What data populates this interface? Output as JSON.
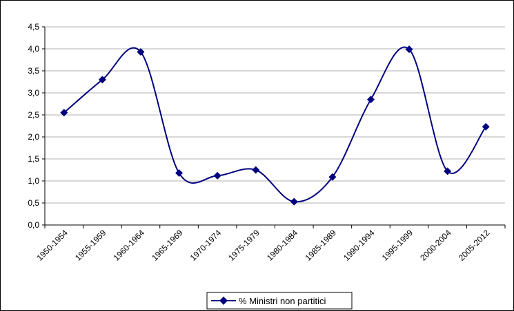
{
  "chart_data": {
    "type": "line",
    "title": "",
    "xlabel": "",
    "ylabel": "",
    "categories": [
      "1950-1954",
      "1955-1959",
      "1960-1964",
      "1965-1969",
      "1970-1974",
      "1975-1979",
      "1980-1984",
      "1985-1989",
      "1990-1994",
      "1995-1999",
      "2000-2004",
      "2005-2012"
    ],
    "series": [
      {
        "name": "% Ministri non partitici",
        "values": [
          2.55,
          3.3,
          3.93,
          1.18,
          1.12,
          1.25,
          0.53,
          1.09,
          2.85,
          3.99,
          1.22,
          2.23
        ],
        "color": "#000080",
        "marker": "diamond",
        "smooth": true
      }
    ],
    "ylim": [
      0,
      4.5
    ],
    "yticks": [
      "0,0",
      "0,5",
      "1,0",
      "1,5",
      "2,0",
      "2,5",
      "3,0",
      "3,5",
      "4,0",
      "4,5"
    ],
    "ytick_values": [
      0,
      0.5,
      1,
      1.5,
      2,
      2.5,
      3,
      3.5,
      4,
      4.5
    ],
    "grid": true,
    "legend_position": "bottom"
  }
}
